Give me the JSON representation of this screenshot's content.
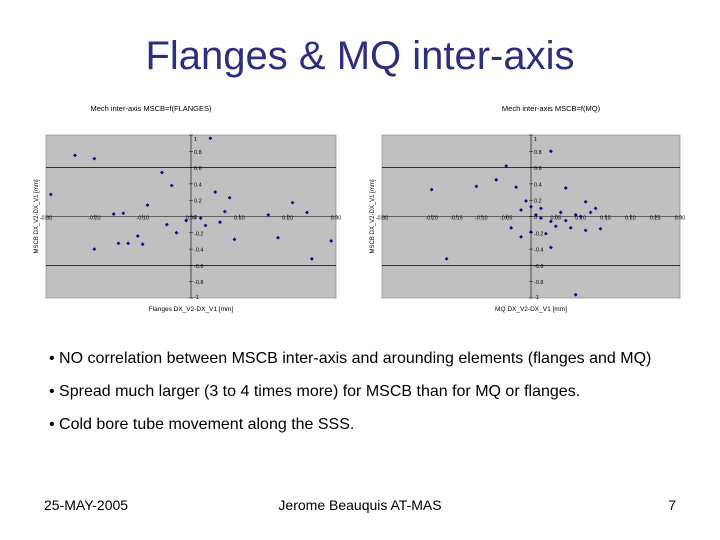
{
  "slide": {
    "title": "Flanges & MQ inter-axis",
    "bullets": [
      "• NO correlation between MSCB inter-axis and arounding elements (flanges and MQ)",
      "• Spread much larger (3 to 4 times more) for MSCB than for MQ or flanges.",
      "• Cold bore tube movement along the SSS."
    ],
    "footer": {
      "date": "25-MAY-2005",
      "center": "Jerome Beauquis AT-MAS",
      "page": "7"
    }
  },
  "colors": {
    "title": "#2e2e7e",
    "plot_bg": "#c0c0c0",
    "marker": "#00008b"
  },
  "chart_data": [
    {
      "type": "scatter",
      "title": "Mech inter-axis MSCB=f(FLANGES)",
      "xlabel": "Flanges DX_V2-DX_V1 [mm]",
      "ylabel": "MSCB DX_V2-DX_V1 [mm]",
      "xlim": [
        -0.3,
        0.3
      ],
      "ylim": [
        -1,
        1
      ],
      "x_ticks": [
        "-0.30",
        "-0.20",
        "-0.10",
        "0.00",
        "0.10",
        "0.20",
        "0.30"
      ],
      "y_ticks": [
        "-1",
        "-0.8",
        "-0.6",
        "-0.4",
        "-0.2",
        "0",
        "0.2",
        "0.4",
        "0.6",
        "0.8",
        "1"
      ],
      "grid": "horizontal",
      "points": [
        {
          "x": -0.24,
          "y": 0.75
        },
        {
          "x": -0.2,
          "y": 0.71
        },
        {
          "x": -0.29,
          "y": 0.27
        },
        {
          "x": -0.16,
          "y": 0.03
        },
        {
          "x": -0.14,
          "y": 0.04
        },
        {
          "x": -0.09,
          "y": 0.14
        },
        {
          "x": -0.11,
          "y": -0.24
        },
        {
          "x": -0.15,
          "y": -0.33
        },
        {
          "x": -0.13,
          "y": -0.33
        },
        {
          "x": -0.1,
          "y": -0.34
        },
        {
          "x": -0.2,
          "y": -0.4
        },
        {
          "x": -0.06,
          "y": 0.54
        },
        {
          "x": -0.04,
          "y": 0.38
        },
        {
          "x": -0.05,
          "y": -0.1
        },
        {
          "x": -0.03,
          "y": -0.2
        },
        {
          "x": -0.01,
          "y": -0.05
        },
        {
          "x": 0.02,
          "y": -0.02
        },
        {
          "x": 0.04,
          "y": 0.96
        },
        {
          "x": 0.05,
          "y": 0.3
        },
        {
          "x": 0.06,
          "y": -0.07
        },
        {
          "x": 0.08,
          "y": 0.23
        },
        {
          "x": 0.09,
          "y": -0.28
        },
        {
          "x": 0.07,
          "y": 0.06
        },
        {
          "x": 0.16,
          "y": 0.02
        },
        {
          "x": 0.18,
          "y": -0.26
        },
        {
          "x": 0.21,
          "y": 0.17
        },
        {
          "x": 0.24,
          "y": 0.05
        },
        {
          "x": 0.29,
          "y": -0.3
        },
        {
          "x": 0.25,
          "y": -0.52
        },
        {
          "x": 0.03,
          "y": -0.11
        }
      ]
    },
    {
      "type": "scatter",
      "title": "Mech inter-axis MSCB=f(MQ)",
      "xlabel": "MQ DX_V2-DX_V1 [mm]",
      "ylabel": "MSCB DX_V2-DX_V1 [mm]",
      "xlim": [
        -0.3,
        0.3
      ],
      "ylim": [
        -1,
        1
      ],
      "x_ticks": [
        "-0.30",
        "-0.20",
        "-0.15",
        "-0.10",
        "-0.05",
        "0.05",
        "0.10",
        "0.15",
        "0.20",
        "0.25",
        "0.30"
      ],
      "y_ticks": [
        "-1",
        "-0.8",
        "-0.6",
        "-0.4",
        "-0.2",
        "0",
        "0.2",
        "0.4",
        "0.6",
        "0.8",
        "1"
      ],
      "grid": "horizontal",
      "points": [
        {
          "x": -0.07,
          "y": 0.45
        },
        {
          "x": -0.05,
          "y": 0.62
        },
        {
          "x": -0.03,
          "y": 0.36
        },
        {
          "x": 0.04,
          "y": 0.8
        },
        {
          "x": -0.11,
          "y": 0.37
        },
        {
          "x": -0.2,
          "y": 0.33
        },
        {
          "x": 0.07,
          "y": 0.35
        },
        {
          "x": 0.11,
          "y": 0.18
        },
        {
          "x": -0.01,
          "y": 0.19
        },
        {
          "x": -0.02,
          "y": 0.08
        },
        {
          "x": 0.0,
          "y": 0.12
        },
        {
          "x": 0.02,
          "y": 0.1
        },
        {
          "x": 0.09,
          "y": 0.02
        },
        {
          "x": 0.1,
          "y": 0.0
        },
        {
          "x": 0.04,
          "y": -0.06
        },
        {
          "x": 0.02,
          "y": -0.02
        },
        {
          "x": 0.01,
          "y": 0.02
        },
        {
          "x": 0.05,
          "y": -0.12
        },
        {
          "x": 0.06,
          "y": 0.05
        },
        {
          "x": 0.07,
          "y": -0.05
        },
        {
          "x": 0.12,
          "y": 0.05
        },
        {
          "x": 0.13,
          "y": 0.1
        },
        {
          "x": 0.14,
          "y": -0.15
        },
        {
          "x": 0.08,
          "y": -0.14
        },
        {
          "x": 0.03,
          "y": -0.21
        },
        {
          "x": 0.0,
          "y": -0.19
        },
        {
          "x": -0.02,
          "y": -0.25
        },
        {
          "x": -0.04,
          "y": -0.14
        },
        {
          "x": 0.11,
          "y": -0.17
        },
        {
          "x": -0.17,
          "y": -0.52
        },
        {
          "x": 0.04,
          "y": -0.38
        },
        {
          "x": 0.09,
          "y": -0.96
        }
      ]
    }
  ]
}
